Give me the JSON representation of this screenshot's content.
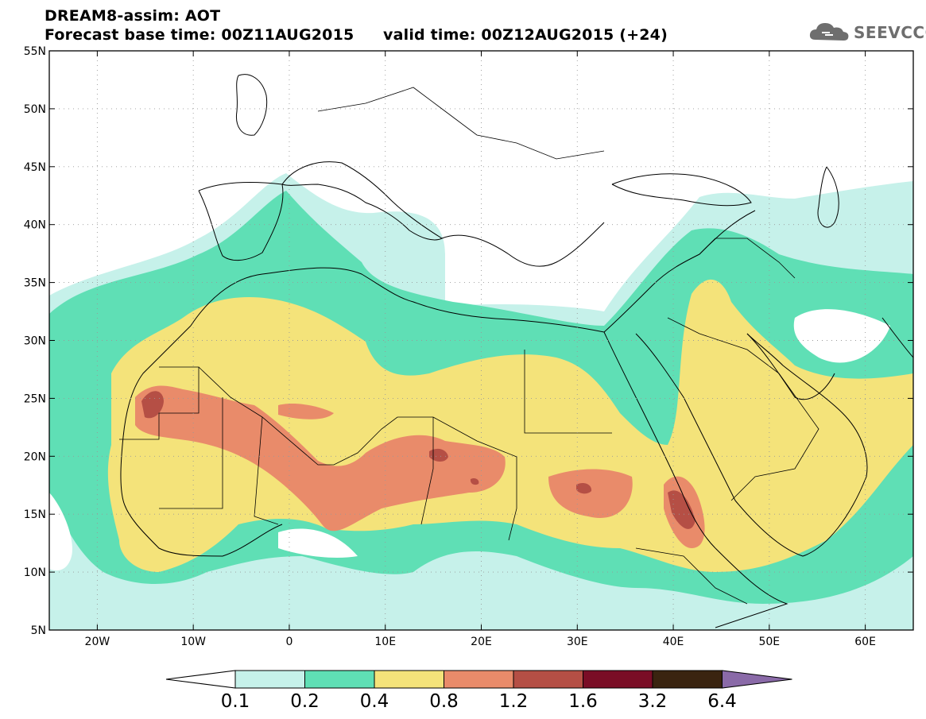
{
  "header": {
    "title_line1": "DREAM8-assim: AOT",
    "title_line2": "Forecast base time: 00Z11AUG2015",
    "valid_time": "valid time: 00Z12AUG2015 (+24)"
  },
  "logo": {
    "text": "SEEVCCC",
    "icon": "cloud-icon"
  },
  "map": {
    "lon_range": [
      -25,
      65
    ],
    "lat_range": [
      5,
      55
    ],
    "lat_ticks": [
      {
        "v": 55,
        "label": "55N"
      },
      {
        "v": 50,
        "label": "50N"
      },
      {
        "v": 45,
        "label": "45N"
      },
      {
        "v": 40,
        "label": "40N"
      },
      {
        "v": 35,
        "label": "35N"
      },
      {
        "v": 30,
        "label": "30N"
      },
      {
        "v": 25,
        "label": "25N"
      },
      {
        "v": 20,
        "label": "20N"
      },
      {
        "v": 15,
        "label": "15N"
      },
      {
        "v": 10,
        "label": "10N"
      },
      {
        "v": 5,
        "label": "5N"
      }
    ],
    "lon_ticks": [
      {
        "v": -20,
        "label": "20W"
      },
      {
        "v": -10,
        "label": "10W"
      },
      {
        "v": 0,
        "label": "0"
      },
      {
        "v": 10,
        "label": "10E"
      },
      {
        "v": 20,
        "label": "20E"
      },
      {
        "v": 30,
        "label": "30E"
      },
      {
        "v": 40,
        "label": "40E"
      },
      {
        "v": 50,
        "label": "50E"
      },
      {
        "v": 60,
        "label": "60E"
      }
    ],
    "grid": "dotted"
  },
  "colorbar": {
    "ticks": [
      "0.1",
      "0.2",
      "0.4",
      "0.8",
      "1.2",
      "1.6",
      "3.2",
      "6.4"
    ],
    "colors": [
      "#c6f1ea",
      "#5fdfb5",
      "#f4e37a",
      "#e98b6a",
      "#b54f45",
      "#7a0d26",
      "#3a2410",
      "#8a6aa8"
    ]
  }
}
